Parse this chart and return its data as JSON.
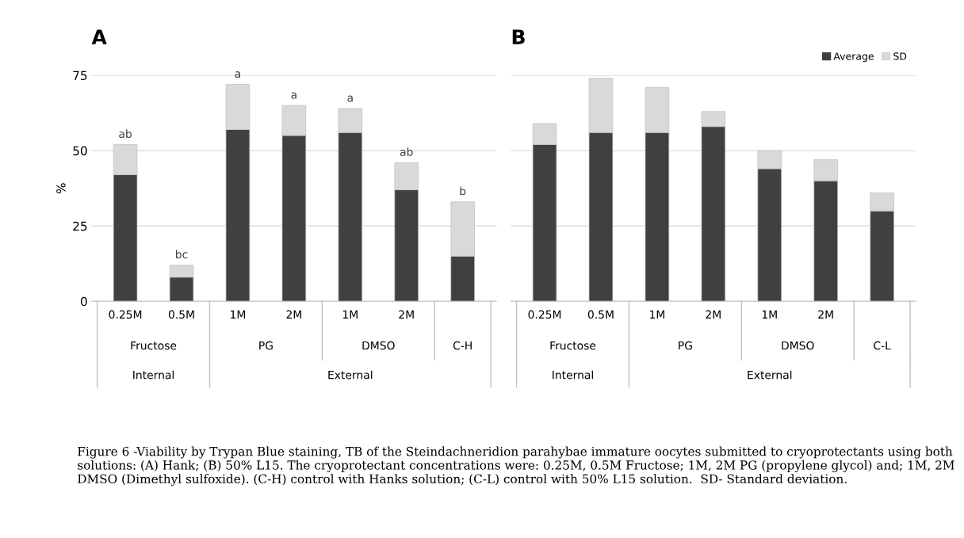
{
  "chart_data": [
    {
      "type": "bar",
      "title": "A",
      "ylabel": "%",
      "stacked": true,
      "categories": [
        "0.25M",
        "0.5M",
        "1M",
        "2M",
        "1M",
        "2M",
        null
      ],
      "series": [
        {
          "color": "#404040",
          "values": [
            42,
            8,
            57,
            55,
            56,
            37,
            15
          ]
        },
        {
          "color": "#d9d9d9",
          "values": [
            10,
            4,
            15,
            10,
            8,
            9,
            18
          ],
          "value_labels": [
            "ab",
            "bc",
            "a",
            "a",
            "a",
            "ab",
            "b"
          ]
        }
      ],
      "ylim": [
        0,
        75
      ],
      "yticks": [
        0,
        25,
        50,
        75
      ],
      "grid": "y",
      "legend": false,
      "annotations": [
        "Fructose",
        "PG",
        "DMSO",
        "C-H",
        "Internal",
        "External",
        "Figure 6 -Viability by Trypan Blue staining, TB of the Steindachneridion parahybae immature oocytes submitted to cryoprotectants using both solutions: (A) Hank; (B) 50% L15. The cryoprotectant concentrations were: 0.25M, 0.5M Fructose; 1M, 2M PG (propylene glycol) and; 1M, 2M DMSO (Dimethyl sulfoxide). (C-H) control with Hanks solution; (C-L) control with 50% L15 solution.  SD- Standard deviation."
      ]
    },
    {
      "type": "bar",
      "title": "B",
      "stacked": true,
      "categories": [
        "0.25M",
        "0.5M",
        "1M",
        "2M",
        "1M",
        "2M",
        null
      ],
      "series": [
        {
          "name": "Average",
          "color": "#404040",
          "values": [
            52,
            56,
            56,
            58,
            44,
            40,
            30
          ]
        },
        {
          "name": "SD",
          "color": "#d9d9d9",
          "values": [
            7,
            18,
            15,
            5,
            6,
            7,
            6
          ]
        }
      ],
      "ylim": [
        0,
        75
      ],
      "yticks": [
        0,
        25,
        50,
        75
      ],
      "tick_labels": "x",
      "grid": "y",
      "legend": "top right",
      "annotations": [
        "Fructose",
        "PG",
        "DMSO",
        "C-L",
        "Internal",
        "External"
      ]
    }
  ]
}
